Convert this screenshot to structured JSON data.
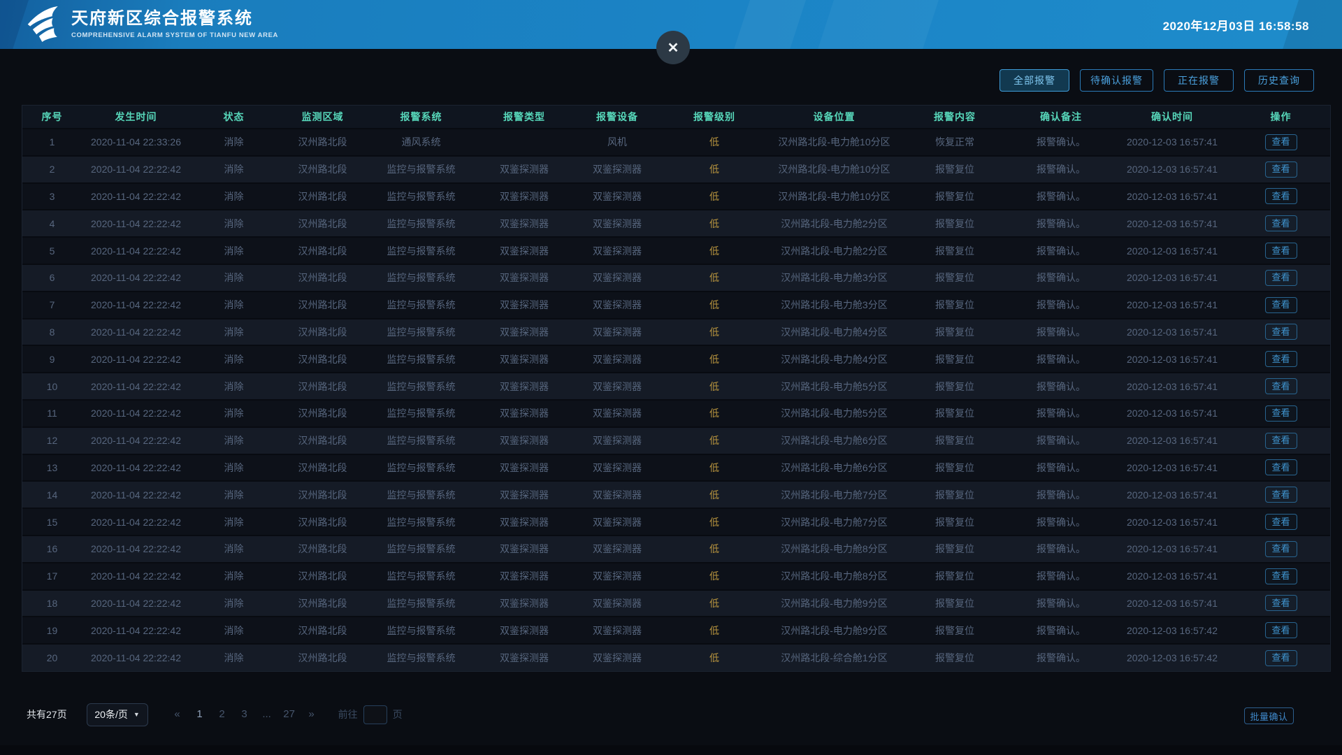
{
  "header": {
    "title": "天府新区综合报警系统",
    "subtitle": "COMPREHENSIVE ALARM SYSTEM OF TIANFU NEW AREA",
    "datetime": "2020年12月03日 16:58:58"
  },
  "icons": {
    "close": "✕",
    "caret_down": "▼"
  },
  "filters": [
    {
      "label": "全部报警",
      "active": true
    },
    {
      "label": "待确认报警",
      "active": false
    },
    {
      "label": "正在报警",
      "active": false
    },
    {
      "label": "历史查询",
      "active": false
    }
  ],
  "table": {
    "columns": [
      "序号",
      "发生时间",
      "状态",
      "监测区域",
      "报警系统",
      "报警类型",
      "报警设备",
      "报警级别",
      "设备位置",
      "报警内容",
      "确认备注",
      "确认时间",
      "操作"
    ],
    "action_label": "查看",
    "rows": [
      [
        "1",
        "2020-11-04 22:33:26",
        "消除",
        "汉州路北段",
        "通风系统",
        "",
        "风机",
        "低",
        "汉州路北段-电力舱10分区",
        "恢复正常",
        "报警确认。",
        "2020-12-03 16:57:41"
      ],
      [
        "2",
        "2020-11-04 22:22:42",
        "消除",
        "汉州路北段",
        "监控与报警系统",
        "双鉴探测器",
        "双鉴探测器",
        "低",
        "汉州路北段-电力舱10分区",
        "报警复位",
        "报警确认。",
        "2020-12-03 16:57:41"
      ],
      [
        "3",
        "2020-11-04 22:22:42",
        "消除",
        "汉州路北段",
        "监控与报警系统",
        "双鉴探测器",
        "双鉴探测器",
        "低",
        "汉州路北段-电力舱10分区",
        "报警复位",
        "报警确认。",
        "2020-12-03 16:57:41"
      ],
      [
        "4",
        "2020-11-04 22:22:42",
        "消除",
        "汉州路北段",
        "监控与报警系统",
        "双鉴探测器",
        "双鉴探测器",
        "低",
        "汉州路北段-电力舱2分区",
        "报警复位",
        "报警确认。",
        "2020-12-03 16:57:41"
      ],
      [
        "5",
        "2020-11-04 22:22:42",
        "消除",
        "汉州路北段",
        "监控与报警系统",
        "双鉴探测器",
        "双鉴探测器",
        "低",
        "汉州路北段-电力舱2分区",
        "报警复位",
        "报警确认。",
        "2020-12-03 16:57:41"
      ],
      [
        "6",
        "2020-11-04 22:22:42",
        "消除",
        "汉州路北段",
        "监控与报警系统",
        "双鉴探测器",
        "双鉴探测器",
        "低",
        "汉州路北段-电力舱3分区",
        "报警复位",
        "报警确认。",
        "2020-12-03 16:57:41"
      ],
      [
        "7",
        "2020-11-04 22:22:42",
        "消除",
        "汉州路北段",
        "监控与报警系统",
        "双鉴探测器",
        "双鉴探测器",
        "低",
        "汉州路北段-电力舱3分区",
        "报警复位",
        "报警确认。",
        "2020-12-03 16:57:41"
      ],
      [
        "8",
        "2020-11-04 22:22:42",
        "消除",
        "汉州路北段",
        "监控与报警系统",
        "双鉴探测器",
        "双鉴探测器",
        "低",
        "汉州路北段-电力舱4分区",
        "报警复位",
        "报警确认。",
        "2020-12-03 16:57:41"
      ],
      [
        "9",
        "2020-11-04 22:22:42",
        "消除",
        "汉州路北段",
        "监控与报警系统",
        "双鉴探测器",
        "双鉴探测器",
        "低",
        "汉州路北段-电力舱4分区",
        "报警复位",
        "报警确认。",
        "2020-12-03 16:57:41"
      ],
      [
        "10",
        "2020-11-04 22:22:42",
        "消除",
        "汉州路北段",
        "监控与报警系统",
        "双鉴探测器",
        "双鉴探测器",
        "低",
        "汉州路北段-电力舱5分区",
        "报警复位",
        "报警确认。",
        "2020-12-03 16:57:41"
      ],
      [
        "11",
        "2020-11-04 22:22:42",
        "消除",
        "汉州路北段",
        "监控与报警系统",
        "双鉴探测器",
        "双鉴探测器",
        "低",
        "汉州路北段-电力舱5分区",
        "报警复位",
        "报警确认。",
        "2020-12-03 16:57:41"
      ],
      [
        "12",
        "2020-11-04 22:22:42",
        "消除",
        "汉州路北段",
        "监控与报警系统",
        "双鉴探测器",
        "双鉴探测器",
        "低",
        "汉州路北段-电力舱6分区",
        "报警复位",
        "报警确认。",
        "2020-12-03 16:57:41"
      ],
      [
        "13",
        "2020-11-04 22:22:42",
        "消除",
        "汉州路北段",
        "监控与报警系统",
        "双鉴探测器",
        "双鉴探测器",
        "低",
        "汉州路北段-电力舱6分区",
        "报警复位",
        "报警确认。",
        "2020-12-03 16:57:41"
      ],
      [
        "14",
        "2020-11-04 22:22:42",
        "消除",
        "汉州路北段",
        "监控与报警系统",
        "双鉴探测器",
        "双鉴探测器",
        "低",
        "汉州路北段-电力舱7分区",
        "报警复位",
        "报警确认。",
        "2020-12-03 16:57:41"
      ],
      [
        "15",
        "2020-11-04 22:22:42",
        "消除",
        "汉州路北段",
        "监控与报警系统",
        "双鉴探测器",
        "双鉴探测器",
        "低",
        "汉州路北段-电力舱7分区",
        "报警复位",
        "报警确认。",
        "2020-12-03 16:57:41"
      ],
      [
        "16",
        "2020-11-04 22:22:42",
        "消除",
        "汉州路北段",
        "监控与报警系统",
        "双鉴探测器",
        "双鉴探测器",
        "低",
        "汉州路北段-电力舱8分区",
        "报警复位",
        "报警确认。",
        "2020-12-03 16:57:41"
      ],
      [
        "17",
        "2020-11-04 22:22:42",
        "消除",
        "汉州路北段",
        "监控与报警系统",
        "双鉴探测器",
        "双鉴探测器",
        "低",
        "汉州路北段-电力舱8分区",
        "报警复位",
        "报警确认。",
        "2020-12-03 16:57:41"
      ],
      [
        "18",
        "2020-11-04 22:22:42",
        "消除",
        "汉州路北段",
        "监控与报警系统",
        "双鉴探测器",
        "双鉴探测器",
        "低",
        "汉州路北段-电力舱9分区",
        "报警复位",
        "报警确认。",
        "2020-12-03 16:57:41"
      ],
      [
        "19",
        "2020-11-04 22:22:42",
        "消除",
        "汉州路北段",
        "监控与报警系统",
        "双鉴探测器",
        "双鉴探测器",
        "低",
        "汉州路北段-电力舱9分区",
        "报警复位",
        "报警确认。",
        "2020-12-03 16:57:42"
      ],
      [
        "20",
        "2020-11-04 22:22:42",
        "消除",
        "汉州路北段",
        "监控与报警系统",
        "双鉴探测器",
        "双鉴探测器",
        "低",
        "汉州路北段-综合舱1分区",
        "报警复位",
        "报警确认。",
        "2020-12-03 16:57:42"
      ]
    ]
  },
  "pagination": {
    "total_text": "共有27页",
    "page_size_label": "20条/页",
    "prev": "«",
    "next": "»",
    "pages": [
      "1",
      "2",
      "3",
      "...",
      "27"
    ],
    "current_page": "1",
    "goto_label": "前往",
    "goto_value": "",
    "goto_suffix": "页"
  },
  "batch_confirm_label": "批量确认",
  "colors": {
    "header_blue": "#1b84c6",
    "accent_blue": "#3f9ad2",
    "table_header_teal": "#57d7ba",
    "level_low_yellow": "#b6933e",
    "page_background": "#0a0d13"
  }
}
